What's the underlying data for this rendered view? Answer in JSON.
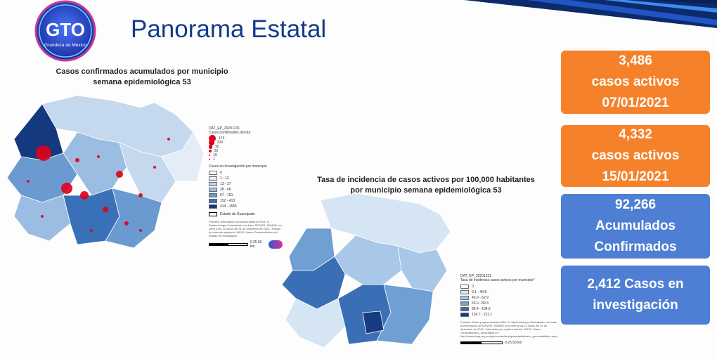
{
  "logo": {
    "mark": "GTO",
    "tagline": "Grandeza de México"
  },
  "title": "Panorama Estatal",
  "map1": {
    "title_line1": "Casos confirmados acumulados por municipio",
    "title_line2": "semana epidemiológica 53",
    "legend": {
      "dataset": "DAT_EP_20201231",
      "circles_title": "Casos confirmados del día",
      "circle_values": [
        "174",
        "100",
        "50",
        "25",
        "10",
        "1"
      ],
      "fill_title": "Casos en investigación por municipio",
      "classes": [
        "0",
        "1 - 12",
        "13 - 37",
        "38 - 66",
        "67 - 151",
        "152 - 413",
        "414 - 1555"
      ],
      "class_colors": [
        "#ffffff",
        "#e3ecf7",
        "#c4d8ee",
        "#9cbde2",
        "#6a9ad0",
        "#3a70b8",
        "#15397f"
      ],
      "boundary_label": "Estado de Guanajuato",
      "sources": "Fuentes: Información proporcionada por SSA- D. Epidemiología Guanajuato con base SISVER- SINAVE con corte a las 11 horas del 31 de diciembre de 2020. \"Rango de intervalo ajustado. INEGI. Marco Geoestadístico del Estado de Guanajuato.",
      "scale": [
        "0",
        "25",
        "50 km"
      ]
    }
  },
  "map2": {
    "title_line1": "Tasa de incidencia de casos activos por 100,000 habitantes",
    "title_line2": "por municipio semana epidemiológica 53",
    "legend": {
      "dataset": "DAT_EP_20201231",
      "fill_title": "Tasa de incidencia casos activos por municipio*",
      "classes": [
        "0",
        "0.1 - 40.8",
        "40.9 - 62.9",
        "63.0 - 89.3",
        "89.4 - 134.6",
        "134.7 - 211.1"
      ],
      "class_colors": [
        "#ffffff",
        "#d6e5f4",
        "#a9c8e7",
        "#6f9fd3",
        "#3b6fb5",
        "#173c82"
      ],
      "sources": "Fuentes: Datos proporcionados SSA- D. Epidemiología Guanajuato con base a información de SISVER- SINAVE con corte a las 11 horas del 31 de diciembre de 2020. *Intervalos por ruptura natural. INEGI. Marco Geoestadístico, consultado en: http://www.inegi.org.mx/geo/contenidos/geoestadistica/m_geoestadistico.aspx",
      "scale": [
        "0",
        "25",
        "50 km"
      ]
    }
  },
  "stats": [
    {
      "line1": "3,486",
      "line2": "casos activos",
      "line3": "07/01/2021",
      "color": "#f5822a"
    },
    {
      "line1": "4,332",
      "line2": "casos activos",
      "line3": "15/01/2021",
      "color": "#f5822a"
    },
    {
      "line1": "92,266",
      "line2": "Acumulados",
      "line3": "Confirmados",
      "color": "#4e7fd4"
    },
    {
      "line1": "2,412 Casos en",
      "line2": "investigación",
      "color": "#4e7fd4"
    }
  ]
}
